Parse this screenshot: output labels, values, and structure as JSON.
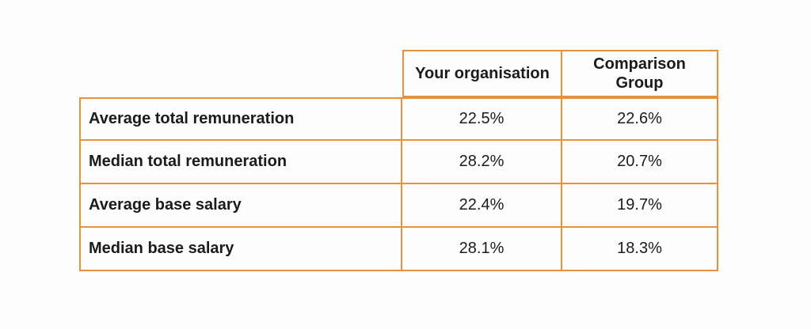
{
  "page": {
    "background_color": "#fdfdfd",
    "text_color": "#1b1b1b",
    "border_color": "#e8903a"
  },
  "table": {
    "header": {
      "your_org": "Your organisation",
      "comparison": "Comparison Group"
    },
    "rows": [
      {
        "label": "Average total remuneration",
        "your_org": "22.5%",
        "comparison": "22.6%"
      },
      {
        "label": "Median total remuneration",
        "your_org": "28.2%",
        "comparison": "20.7%"
      },
      {
        "label": "Average base salary",
        "your_org": "22.4%",
        "comparison": "19.7%"
      },
      {
        "label": "Median base salary",
        "your_org": "28.1%",
        "comparison": "18.3%"
      }
    ]
  },
  "chart_data": {
    "type": "table",
    "columns": [
      "",
      "Your organisation",
      "Comparison Group"
    ],
    "rows": [
      [
        "Average total remuneration",
        "22.5%",
        "22.6%"
      ],
      [
        "Median total remuneration",
        "28.2%",
        "20.7%"
      ],
      [
        "Average base salary",
        "22.4%",
        "19.7%"
      ],
      [
        "Median base salary",
        "28.1%",
        "18.3%"
      ]
    ],
    "title": "",
    "legend_position": "none",
    "notes": "values are percentages; gender pay gap style comparison table with orange grid borders"
  }
}
